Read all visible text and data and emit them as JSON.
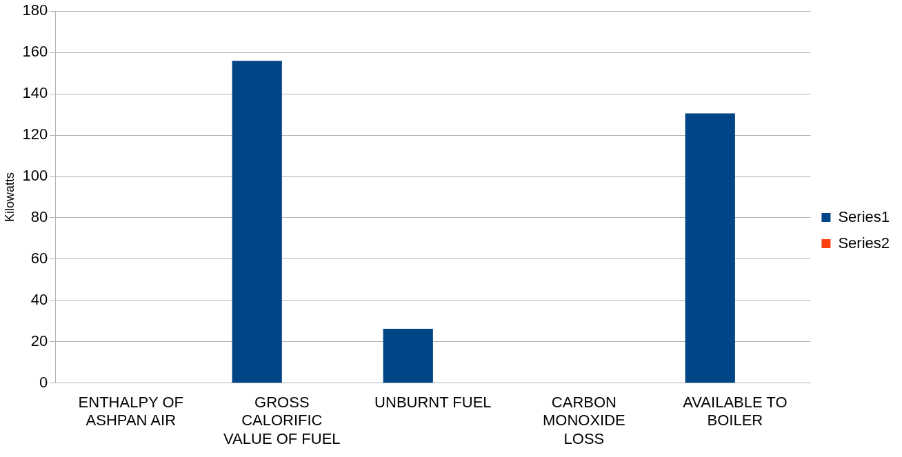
{
  "chart_data": {
    "type": "bar",
    "ylabel": "Kilowatts",
    "categories": [
      "ENTHALPY OF ASHPAN AIR",
      "GROSS CALORIFIC VALUE OF FUEL",
      "UNBURNT FUEL",
      "CARBON MONOXIDE LOSS",
      "AVAILABLE TO BOILER"
    ],
    "series": [
      {
        "name": "Series1",
        "color": "#004586",
        "values": [
          0,
          156,
          26.3,
          0,
          130.5
        ]
      },
      {
        "name": "Series2",
        "color": "#ff420e",
        "values": [
          0,
          0,
          0,
          0,
          0
        ]
      }
    ],
    "ylim": [
      0,
      180
    ],
    "yticks": [
      0,
      20,
      40,
      60,
      80,
      100,
      120,
      140,
      160,
      180
    ],
    "grid": "y",
    "legend": "right"
  }
}
